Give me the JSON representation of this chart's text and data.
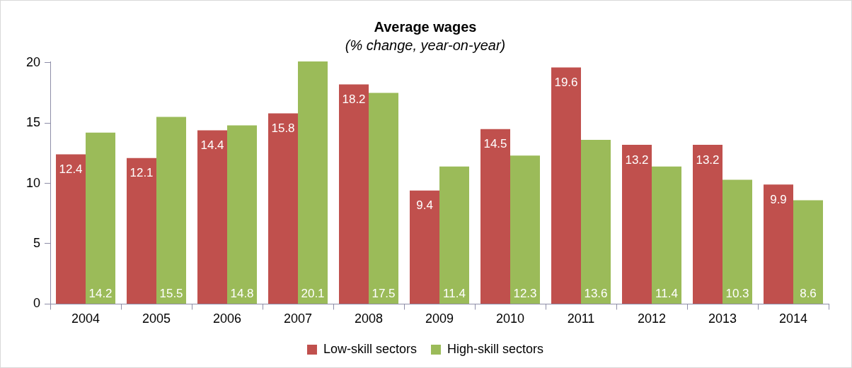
{
  "chart_data": {
    "type": "bar",
    "title": "Average wages",
    "subtitle": "(% change, year-on-year)",
    "categories": [
      "2004",
      "2005",
      "2006",
      "2007",
      "2008",
      "2009",
      "2010",
      "2011",
      "2012",
      "2013",
      "2014"
    ],
    "series": [
      {
        "name": "Low-skill sectors",
        "color": "#c0504d",
        "values": [
          12.4,
          12.1,
          14.4,
          15.8,
          18.2,
          9.4,
          14.5,
          19.6,
          13.2,
          13.2,
          9.9
        ]
      },
      {
        "name": "High-skill sectors",
        "color": "#9bbb59",
        "values": [
          14.2,
          15.5,
          14.8,
          20.1,
          17.5,
          11.4,
          12.3,
          13.6,
          11.4,
          10.3,
          8.6
        ]
      }
    ],
    "ylim": [
      0,
      20.1
    ],
    "yticks": [
      0,
      5,
      10,
      15,
      20
    ],
    "grid": false,
    "legend": "bottom",
    "data_labels": true
  }
}
